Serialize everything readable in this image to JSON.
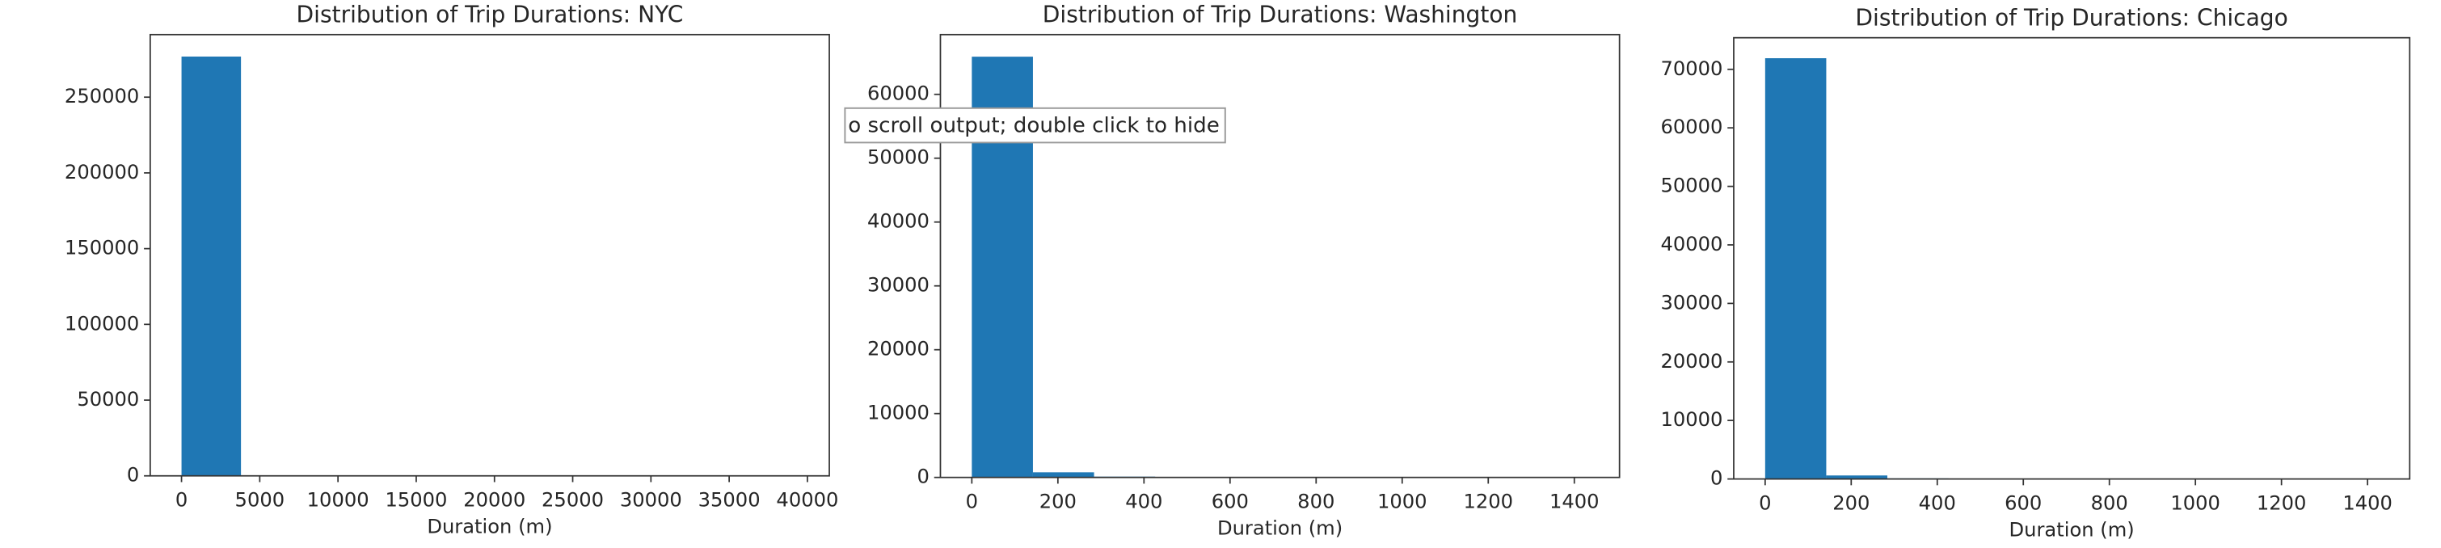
{
  "chart_data": [
    {
      "type": "histogram",
      "title": "Distribution of Trip Durations: NYC",
      "x_label": "Duration (m)",
      "color": "#1f77b4",
      "bins": [
        0,
        3800,
        7600,
        11400,
        15200,
        19000,
        22800,
        26600,
        30400,
        34200,
        38000
      ],
      "counts": [
        276800,
        150,
        40,
        15,
        8,
        5,
        3,
        2,
        1,
        1
      ],
      "xlim": [
        -2000,
        41400
      ],
      "xticks": [
        0,
        5000,
        10000,
        15000,
        20000,
        25000,
        30000,
        35000,
        40000
      ],
      "ylim": [
        0,
        291300
      ],
      "yticks": [
        0,
        50000,
        100000,
        150000,
        200000,
        250000
      ]
    },
    {
      "type": "histogram",
      "title": "Distribution of Trip Durations: Washington",
      "x_label": "Duration (m)",
      "color": "#1f77b4",
      "bins": [
        0,
        142,
        284,
        426,
        568,
        710,
        852,
        994,
        1136,
        1278,
        1420
      ],
      "counts": [
        65900,
        800,
        120,
        60,
        30,
        20,
        10,
        8,
        5,
        3
      ],
      "xlim": [
        -73,
        1505
      ],
      "xticks": [
        0,
        200,
        400,
        600,
        800,
        1000,
        1200,
        1400
      ],
      "ylim": [
        0,
        69360
      ],
      "yticks": [
        0,
        10000,
        20000,
        30000,
        40000,
        50000,
        60000
      ]
    },
    {
      "type": "histogram",
      "title": "Distribution of Trip Durations: Chicago",
      "x_label": "Duration (m)",
      "color": "#1f77b4",
      "bins": [
        0,
        142,
        284,
        426,
        568,
        710,
        852,
        994,
        1136,
        1278,
        1420
      ],
      "counts": [
        71900,
        600,
        100,
        50,
        25,
        15,
        10,
        6,
        4,
        2
      ],
      "xlim": [
        -73,
        1498
      ],
      "xticks": [
        0,
        200,
        400,
        600,
        800,
        1000,
        1200,
        1400
      ],
      "ylim": [
        0,
        75400
      ],
      "yticks": [
        0,
        10000,
        20000,
        30000,
        40000,
        50000,
        60000,
        70000
      ]
    }
  ],
  "tooltip": "o scroll output; double click to hide"
}
